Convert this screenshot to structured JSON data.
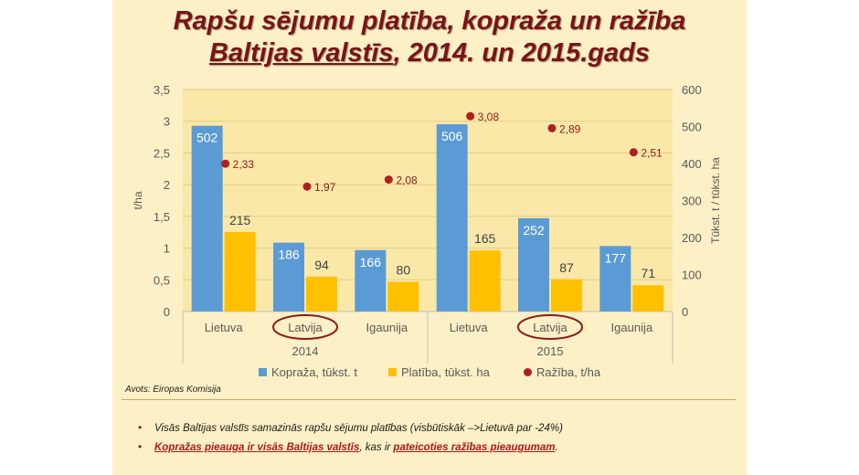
{
  "title": {
    "line1": "Rapšu sējumu platība, kopraža un ražība",
    "line2_underlined": "Baltijas valstīs",
    "line2_rest": ", 2014. un 2015.gads"
  },
  "colors": {
    "kopraza": "#5b9bd5",
    "platiba": "#ffc000",
    "raziba": "#b01f1f",
    "highlight_circle": "#8b1a1a",
    "title": "#7b1416"
  },
  "chart_data": {
    "type": "bar",
    "groups": [
      {
        "label": "2014",
        "categories": [
          "Lietuva",
          "Latvija",
          "Igaunija"
        ]
      },
      {
        "label": "2015",
        "categories": [
          "Lietuva",
          "Latvija",
          "Igaunija"
        ]
      }
    ],
    "categories": [
      "Lietuva",
      "Latvija",
      "Igaunija",
      "Lietuva",
      "Latvija",
      "Igaunija"
    ],
    "highlighted_categories": [
      1,
      4
    ],
    "series": [
      {
        "name": "Kopraža, tūkst. t",
        "type": "bar",
        "axis": "right",
        "values": [
          502,
          186,
          166,
          506,
          252,
          177
        ]
      },
      {
        "name": "Platība, tūkst. ha",
        "type": "bar",
        "axis": "right",
        "values": [
          215,
          94,
          80,
          165,
          87,
          71
        ]
      },
      {
        "name": "Ražība, t/ha",
        "type": "scatter",
        "axis": "left",
        "values": [
          2.33,
          1.97,
          2.08,
          3.08,
          2.89,
          2.51
        ],
        "labels": [
          "2,33",
          "1,97",
          "2,08",
          "3,08",
          "2,89",
          "2,51"
        ]
      }
    ],
    "y_left": {
      "label": "t/ha",
      "range": [
        0,
        3.5
      ],
      "ticks": [
        "0",
        "0,5",
        "1",
        "1,5",
        "2",
        "2,5",
        "3",
        "3,5"
      ]
    },
    "y_right": {
      "label": "Tūkst. t / tūkst. ha",
      "range": [
        0,
        600
      ],
      "ticks": [
        "0",
        "100",
        "200",
        "300",
        "400",
        "500",
        "600"
      ]
    },
    "grid": true,
    "legend_position": "bottom"
  },
  "source": "Avots: Eiropas Komisija",
  "notes": {
    "bullet": "•",
    "item1": "Visās Baltijas valstīs samazinās rapšu sējumu platības (visbūtiskāk –>Lietuvā par -24%)",
    "item2_part1": "Kopražas pieauga ir visās Baltijas valstīs",
    "item2_part2": ", kas ir ",
    "item2_part3": "pateicoties ražības pieaugumam",
    "item2_part4": "."
  }
}
